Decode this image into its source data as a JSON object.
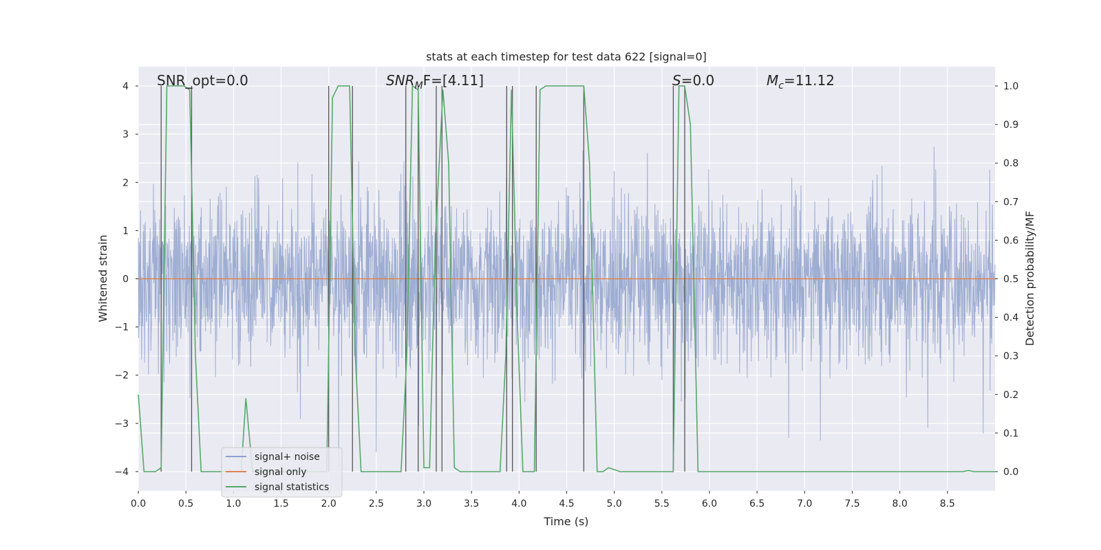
{
  "chart_data": {
    "type": "line",
    "title": "stats at each timestep for test data 622 [signal=0]",
    "xlabel": "Time (s)",
    "ylabel_left": "Whitened strain",
    "ylabel_right": "Detection probability/MF",
    "xlim": [
      0.0,
      9.0
    ],
    "ylim_left": [
      -4.4,
      4.4
    ],
    "ylim_right": [
      -0.05,
      1.05
    ],
    "x_ticks": [
      0.0,
      0.5,
      1.0,
      1.5,
      2.0,
      2.5,
      3.0,
      3.5,
      4.0,
      4.5,
      5.0,
      5.5,
      6.0,
      6.5,
      7.0,
      7.5,
      8.0,
      8.5
    ],
    "x_tick_labels": [
      "0.0",
      "0.5",
      "1.0",
      "1.5",
      "2.0",
      "2.5",
      "3.0",
      "3.5",
      "4.0",
      "4.5",
      "5.0",
      "5.5",
      "6.0",
      "6.5",
      "7.0",
      "7.5",
      "8.0",
      "8.5"
    ],
    "y_left_ticks": [
      4,
      3,
      2,
      1,
      0,
      -1,
      -2,
      -3,
      -4
    ],
    "y_left_tick_labels": [
      "4",
      "3",
      "2",
      "1",
      "0",
      "−1",
      "−2",
      "−3",
      "−4"
    ],
    "y_right_ticks": [
      1.0,
      0.9,
      0.8,
      0.7,
      0.6,
      0.5,
      0.4,
      0.3,
      0.2,
      0.1,
      0.0
    ],
    "y_right_tick_labels": [
      "1.0",
      "0.9",
      "0.8",
      "0.7",
      "0.6",
      "0.5",
      "0.4",
      "0.3",
      "0.2",
      "0.1",
      "0.0"
    ],
    "annotations": {
      "snr_opt": "SNR_opt=0.0",
      "snr_mf_main": "SNR",
      "snr_mf_sub": "M",
      "snr_mf_rest": "F=[4.11]",
      "s_main": "S",
      "s_rest": "=0.0",
      "mc_main": "M",
      "mc_sub": "c",
      "mc_rest": "=11.12"
    },
    "legend": [
      {
        "label": "signal+ noise",
        "color": "#8da0cb"
      },
      {
        "label": "signal only",
        "color": "#dd8452"
      },
      {
        "label": "signal statistics",
        "color": "#55a868"
      }
    ],
    "series": [
      {
        "name": "signal+ noise",
        "axis": "left",
        "kind": "noise",
        "color": "#9aaad0",
        "envelope_typical": 1.6,
        "envelope_peak": 3.9
      },
      {
        "name": "signal only",
        "axis": "left",
        "color": "#dd8452",
        "values": [
          [
            0.0,
            0.0
          ],
          [
            9.0,
            0.0
          ]
        ]
      },
      {
        "name": "signal statistics",
        "axis": "right",
        "color": "#55a868",
        "values": [
          [
            0.0,
            0.2
          ],
          [
            0.06,
            0.0
          ],
          [
            0.18,
            0.0
          ],
          [
            0.24,
            0.01
          ],
          [
            0.3,
            1.0
          ],
          [
            0.36,
            1.0
          ],
          [
            0.42,
            1.0
          ],
          [
            0.48,
            1.0
          ],
          [
            0.54,
            0.99
          ],
          [
            0.6,
            0.3
          ],
          [
            0.66,
            0.0
          ],
          [
            0.72,
            0.0
          ],
          [
            0.78,
            0.0
          ],
          [
            0.84,
            0.0
          ],
          [
            0.9,
            0.0
          ],
          [
            0.96,
            0.0
          ],
          [
            1.02,
            0.0
          ],
          [
            1.08,
            0.0
          ],
          [
            1.13,
            0.19
          ],
          [
            1.2,
            0.0
          ],
          [
            1.26,
            0.0
          ],
          [
            1.32,
            0.0
          ],
          [
            1.38,
            0.0
          ],
          [
            1.44,
            0.0
          ],
          [
            1.5,
            0.0
          ],
          [
            1.56,
            0.0
          ],
          [
            1.62,
            0.0
          ],
          [
            1.68,
            0.0
          ],
          [
            1.74,
            0.0
          ],
          [
            1.8,
            0.0
          ],
          [
            1.86,
            0.0
          ],
          [
            1.92,
            0.0
          ],
          [
            1.98,
            0.0
          ],
          [
            2.04,
            0.97
          ],
          [
            2.1,
            1.0
          ],
          [
            2.16,
            1.0
          ],
          [
            2.22,
            1.0
          ],
          [
            2.28,
            0.3
          ],
          [
            2.34,
            0.0
          ],
          [
            2.4,
            0.0
          ],
          [
            2.46,
            0.0
          ],
          [
            2.52,
            0.0
          ],
          [
            2.58,
            0.0
          ],
          [
            2.64,
            0.0
          ],
          [
            2.7,
            0.0
          ],
          [
            2.76,
            0.0
          ],
          [
            2.82,
            0.3
          ],
          [
            2.88,
            1.0
          ],
          [
            2.94,
            0.99
          ],
          [
            3.0,
            0.01
          ],
          [
            3.06,
            0.01
          ],
          [
            3.12,
            0.6
          ],
          [
            3.2,
            0.99
          ],
          [
            3.26,
            0.8
          ],
          [
            3.32,
            0.01
          ],
          [
            3.38,
            0.0
          ],
          [
            3.44,
            0.0
          ],
          [
            3.5,
            0.0
          ],
          [
            3.56,
            0.0
          ],
          [
            3.62,
            0.0
          ],
          [
            3.68,
            0.0
          ],
          [
            3.74,
            0.0
          ],
          [
            3.8,
            0.0
          ],
          [
            3.86,
            0.3
          ],
          [
            3.92,
            0.99
          ],
          [
            3.98,
            0.4
          ],
          [
            4.04,
            0.0
          ],
          [
            4.1,
            0.0
          ],
          [
            4.16,
            0.0
          ],
          [
            4.22,
            0.99
          ],
          [
            4.28,
            1.0
          ],
          [
            4.34,
            1.0
          ],
          [
            4.4,
            1.0
          ],
          [
            4.46,
            1.0
          ],
          [
            4.52,
            1.0
          ],
          [
            4.58,
            1.0
          ],
          [
            4.64,
            1.0
          ],
          [
            4.68,
            1.0
          ],
          [
            4.74,
            0.8
          ],
          [
            4.82,
            0.0
          ],
          [
            4.88,
            0.0
          ],
          [
            4.94,
            0.01
          ],
          [
            5.0,
            0.005
          ],
          [
            5.06,
            0.0
          ],
          [
            5.12,
            0.0
          ],
          [
            5.18,
            0.0
          ],
          [
            5.24,
            0.0
          ],
          [
            5.3,
            0.0
          ],
          [
            5.36,
            0.0
          ],
          [
            5.42,
            0.0
          ],
          [
            5.48,
            0.0
          ],
          [
            5.54,
            0.0
          ],
          [
            5.62,
            0.0
          ],
          [
            5.68,
            1.0
          ],
          [
            5.74,
            1.0
          ],
          [
            5.8,
            0.9
          ],
          [
            5.88,
            0.0
          ],
          [
            5.94,
            0.0
          ],
          [
            6.0,
            0.0
          ],
          [
            6.5,
            0.0
          ],
          [
            7.0,
            0.0
          ],
          [
            7.5,
            0.0
          ],
          [
            8.0,
            0.0
          ],
          [
            8.5,
            0.0
          ],
          [
            8.66,
            0.0
          ],
          [
            8.72,
            0.003
          ],
          [
            8.78,
            0.0
          ],
          [
            9.0,
            0.0
          ]
        ]
      }
    ],
    "vertical_markers": [
      0.24,
      0.56,
      2.0,
      2.25,
      2.81,
      2.94,
      3.13,
      3.19,
      3.87,
      3.93,
      4.18,
      4.68,
      5.62,
      5.74
    ]
  }
}
